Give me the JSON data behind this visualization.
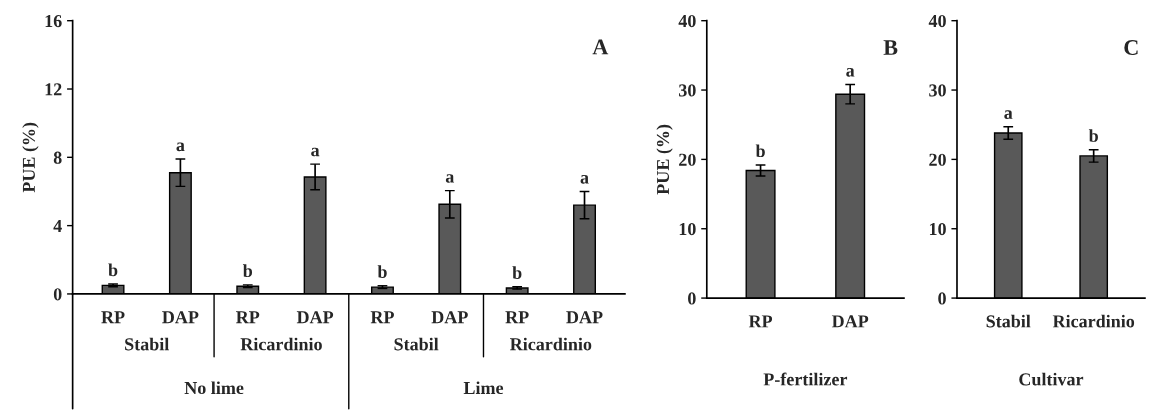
{
  "chart_data": [
    {
      "type": "bar",
      "title": "A",
      "ylabel": "PUE (%)",
      "categories": [
        "RP",
        "DAP",
        "RP",
        "DAP",
        "RP",
        "DAP",
        "RP",
        "DAP"
      ],
      "values": [
        0.5,
        7.1,
        0.45,
        6.85,
        0.4,
        5.25,
        0.35,
        5.2
      ],
      "errors": [
        0.08,
        0.8,
        0.08,
        0.75,
        0.08,
        0.8,
        0.07,
        0.8
      ],
      "value_labels": [
        "b",
        "a",
        "b",
        "a",
        "b",
        "a",
        "b",
        "a"
      ],
      "color": "#595959",
      "ylim": [
        0,
        16
      ],
      "yticks": [
        0,
        4,
        8,
        12,
        16
      ],
      "grid": false,
      "legend": false,
      "annotations": [
        "Stabil",
        "Ricardinio",
        "Stabil",
        "Ricardinio",
        "No lime",
        "Lime"
      ]
    },
    {
      "type": "bar",
      "title": "B",
      "ylabel": "PUE (%)",
      "xlabel": "P-fertilizer",
      "categories": [
        "RP",
        "DAP"
      ],
      "values": [
        18.4,
        29.4
      ],
      "errors": [
        0.8,
        1.4
      ],
      "value_labels": [
        "b",
        "a"
      ],
      "color": "#595959",
      "ylim": [
        0,
        40
      ],
      "yticks": [
        0,
        10,
        20,
        30,
        40
      ],
      "grid": false,
      "legend": false
    },
    {
      "type": "bar",
      "title": "C",
      "xlabel": "Cultivar",
      "categories": [
        "Stabil",
        "Ricardinio"
      ],
      "values": [
        23.8,
        20.5
      ],
      "errors": [
        0.9,
        0.9
      ],
      "value_labels": [
        "a",
        "b"
      ],
      "color": "#595959",
      "ylim": [
        0,
        40
      ],
      "yticks": [
        0,
        10,
        20,
        30,
        40
      ],
      "grid": false,
      "legend": false
    }
  ]
}
